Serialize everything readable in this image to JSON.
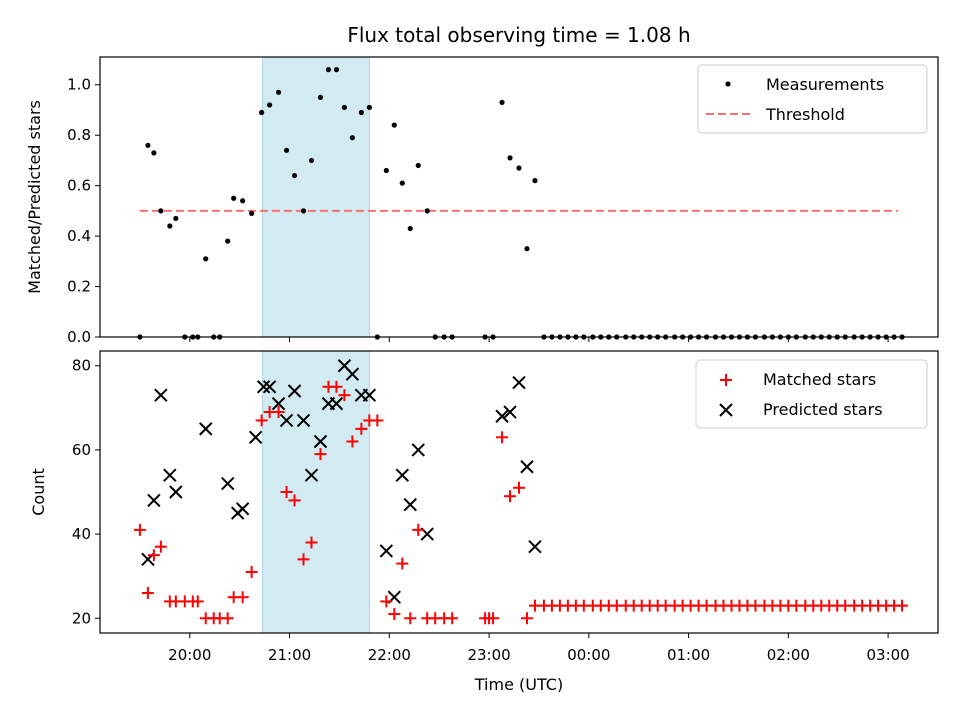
{
  "chart_data": {
    "type": "scatter",
    "title": "Flux total observing time = 1.08 h",
    "xlabel": "Time (UTC)",
    "x_unit": "hours since 00:00 UTC (negative = previous day)",
    "xlim": [
      -4.9,
      3.5
    ],
    "x_ticks": [
      {
        "value": -4,
        "label": "20:00"
      },
      {
        "value": -3,
        "label": "21:00"
      },
      {
        "value": -2,
        "label": "22:00"
      },
      {
        "value": -1,
        "label": "23:00"
      },
      {
        "value": 0,
        "label": "00:00"
      },
      {
        "value": 1,
        "label": "01:00"
      },
      {
        "value": 2,
        "label": "02:00"
      },
      {
        "value": 3,
        "label": "03:00"
      }
    ],
    "highlight_span": {
      "x0": -3.27,
      "x1": -2.2,
      "color": "#add8e6"
    },
    "top_panel": {
      "ylabel": "Matched/Predicted stars",
      "ylim": [
        0,
        1.11
      ],
      "y_ticks": [
        {
          "value": 0.0,
          "label": "0.0"
        },
        {
          "value": 0.2,
          "label": "0.2"
        },
        {
          "value": 0.4,
          "label": "0.4"
        },
        {
          "value": 0.6,
          "label": "0.6"
        },
        {
          "value": 0.8,
          "label": "0.8"
        },
        {
          "value": 1.0,
          "label": "1.0"
        }
      ],
      "threshold": {
        "value": 0.5,
        "x_range": [
          -4.5,
          3.1
        ],
        "color": "#ff7070"
      },
      "legend": [
        "Measurements",
        "Threshold"
      ],
      "measurements": [
        [
          -4.5,
          0
        ],
        [
          -4.42,
          0.76
        ],
        [
          -4.36,
          0.73
        ],
        [
          -4.29,
          0.5
        ],
        [
          -4.2,
          0.44
        ],
        [
          -4.14,
          0.47
        ],
        [
          -4.05,
          0
        ],
        [
          -3.97,
          0
        ],
        [
          -3.92,
          0
        ],
        [
          -3.84,
          0.31
        ],
        [
          -3.76,
          0
        ],
        [
          -3.7,
          0
        ],
        [
          -3.62,
          0.38
        ],
        [
          -3.56,
          0.55
        ],
        [
          -3.47,
          0.54
        ],
        [
          -3.38,
          0.49
        ],
        [
          -3.28,
          0.89
        ],
        [
          -3.2,
          0.92
        ],
        [
          -3.11,
          0.97
        ],
        [
          -3.03,
          0.74
        ],
        [
          -2.95,
          0.64
        ],
        [
          -2.86,
          0.5
        ],
        [
          -2.78,
          0.7
        ],
        [
          -2.69,
          0.95
        ],
        [
          -2.61,
          1.06
        ],
        [
          -2.53,
          1.06
        ],
        [
          -2.45,
          0.91
        ],
        [
          -2.37,
          0.79
        ],
        [
          -2.28,
          0.89
        ],
        [
          -2.2,
          0.91
        ],
        [
          -2.12,
          0
        ],
        [
          -2.03,
          0.66
        ],
        [
          -1.95,
          0.84
        ],
        [
          -1.87,
          0.61
        ],
        [
          -1.79,
          0.43
        ],
        [
          -1.71,
          0.68
        ],
        [
          -1.62,
          0.5
        ],
        [
          -1.54,
          0
        ],
        [
          -1.45,
          0
        ],
        [
          -1.37,
          0
        ],
        [
          -1.04,
          0
        ],
        [
          -0.96,
          0
        ],
        [
          -0.87,
          0.93
        ],
        [
          -0.79,
          0.71
        ],
        [
          -0.7,
          0.67
        ],
        [
          -0.62,
          0.35
        ],
        [
          -0.54,
          0.62
        ],
        [
          -0.45,
          0
        ],
        [
          -0.37,
          0
        ],
        [
          -0.29,
          0
        ],
        [
          -0.21,
          0
        ],
        [
          -0.13,
          0
        ],
        [
          -0.05,
          0
        ],
        [
          0.04,
          0
        ],
        [
          0.12,
          0
        ],
        [
          0.2,
          0
        ],
        [
          0.28,
          0
        ],
        [
          0.37,
          0
        ],
        [
          0.45,
          0
        ],
        [
          0.53,
          0
        ],
        [
          0.61,
          0
        ],
        [
          0.69,
          0
        ],
        [
          0.77,
          0
        ],
        [
          0.86,
          0
        ],
        [
          0.94,
          0
        ],
        [
          1.02,
          0
        ],
        [
          1.1,
          0
        ],
        [
          1.18,
          0
        ],
        [
          1.27,
          0
        ],
        [
          1.35,
          0
        ],
        [
          1.43,
          0
        ],
        [
          1.51,
          0
        ],
        [
          1.59,
          0
        ],
        [
          1.67,
          0
        ],
        [
          1.76,
          0
        ],
        [
          1.84,
          0
        ],
        [
          1.92,
          0
        ],
        [
          2.0,
          0
        ],
        [
          2.08,
          0
        ],
        [
          2.17,
          0
        ],
        [
          2.25,
          0
        ],
        [
          2.33,
          0
        ],
        [
          2.41,
          0
        ],
        [
          2.49,
          0
        ],
        [
          2.57,
          0
        ],
        [
          2.66,
          0
        ],
        [
          2.74,
          0
        ],
        [
          2.82,
          0
        ],
        [
          2.9,
          0
        ],
        [
          2.98,
          0
        ],
        [
          3.06,
          0
        ],
        [
          3.14,
          0
        ]
      ]
    },
    "bottom_panel": {
      "ylabel": "Count",
      "ylim": [
        16.5,
        83.5
      ],
      "y_ticks": [
        {
          "value": 20,
          "label": "20"
        },
        {
          "value": 40,
          "label": "40"
        },
        {
          "value": 60,
          "label": "60"
        },
        {
          "value": 80,
          "label": "80"
        }
      ],
      "legend": [
        "Matched stars",
        "Predicted stars"
      ],
      "matched_color": "#ff0000",
      "predicted_color": "#000000",
      "matched": [
        [
          -4.5,
          41
        ],
        [
          -4.42,
          26
        ],
        [
          -4.36,
          35
        ],
        [
          -4.29,
          37
        ],
        [
          -4.2,
          24
        ],
        [
          -4.14,
          24
        ],
        [
          -4.05,
          24
        ],
        [
          -3.97,
          24
        ],
        [
          -3.92,
          24
        ],
        [
          -3.84,
          20
        ],
        [
          -3.76,
          20
        ],
        [
          -3.7,
          20
        ],
        [
          -3.62,
          20
        ],
        [
          -3.56,
          25
        ],
        [
          -3.47,
          25
        ],
        [
          -3.38,
          31
        ],
        [
          -3.28,
          67
        ],
        [
          -3.2,
          69
        ],
        [
          -3.11,
          69
        ],
        [
          -3.03,
          50
        ],
        [
          -2.95,
          48
        ],
        [
          -2.86,
          34
        ],
        [
          -2.78,
          38
        ],
        [
          -2.69,
          59
        ],
        [
          -2.61,
          75
        ],
        [
          -2.53,
          75
        ],
        [
          -2.45,
          73
        ],
        [
          -2.37,
          62
        ],
        [
          -2.28,
          65
        ],
        [
          -2.2,
          67
        ],
        [
          -2.12,
          67
        ],
        [
          -2.03,
          24
        ],
        [
          -1.95,
          21
        ],
        [
          -1.87,
          33
        ],
        [
          -1.79,
          20
        ],
        [
          -1.71,
          41
        ],
        [
          -1.62,
          20
        ],
        [
          -1.54,
          20
        ],
        [
          -1.45,
          20
        ],
        [
          -1.37,
          20
        ],
        [
          -1.04,
          20
        ],
        [
          -0.96,
          20
        ],
        [
          -1.0,
          20
        ],
        [
          -0.87,
          63
        ],
        [
          -0.79,
          49
        ],
        [
          -0.7,
          51
        ],
        [
          -0.62,
          20
        ],
        [
          -0.54,
          23
        ],
        [
          -0.45,
          23
        ],
        [
          -0.37,
          23
        ],
        [
          -0.29,
          23
        ],
        [
          -0.21,
          23
        ],
        [
          -0.13,
          23
        ],
        [
          -0.05,
          23
        ],
        [
          0.04,
          23
        ],
        [
          0.12,
          23
        ],
        [
          0.2,
          23
        ],
        [
          0.28,
          23
        ],
        [
          0.37,
          23
        ],
        [
          0.45,
          23
        ],
        [
          0.53,
          23
        ],
        [
          0.61,
          23
        ],
        [
          0.69,
          23
        ],
        [
          0.77,
          23
        ],
        [
          0.86,
          23
        ],
        [
          0.94,
          23
        ],
        [
          1.02,
          23
        ],
        [
          1.1,
          23
        ],
        [
          1.18,
          23
        ],
        [
          1.27,
          23
        ],
        [
          1.35,
          23
        ],
        [
          1.43,
          23
        ],
        [
          1.51,
          23
        ],
        [
          1.59,
          23
        ],
        [
          1.67,
          23
        ],
        [
          1.76,
          23
        ],
        [
          1.84,
          23
        ],
        [
          1.92,
          23
        ],
        [
          2.0,
          23
        ],
        [
          2.08,
          23
        ],
        [
          2.17,
          23
        ],
        [
          2.25,
          23
        ],
        [
          2.33,
          23
        ],
        [
          2.41,
          23
        ],
        [
          2.49,
          23
        ],
        [
          2.57,
          23
        ],
        [
          2.66,
          23
        ],
        [
          2.74,
          23
        ],
        [
          2.82,
          23
        ],
        [
          2.9,
          23
        ],
        [
          2.98,
          23
        ],
        [
          3.06,
          23
        ],
        [
          3.14,
          23
        ]
      ],
      "predicted": [
        [
          -4.42,
          34
        ],
        [
          -4.36,
          48
        ],
        [
          -4.29,
          73
        ],
        [
          -4.2,
          54
        ],
        [
          -4.14,
          50
        ],
        [
          -3.84,
          65
        ],
        [
          -3.62,
          52
        ],
        [
          -3.52,
          45
        ],
        [
          -3.47,
          46
        ],
        [
          -3.34,
          63
        ],
        [
          -3.26,
          75
        ],
        [
          -3.2,
          75
        ],
        [
          -3.11,
          71
        ],
        [
          -3.03,
          67
        ],
        [
          -2.95,
          74
        ],
        [
          -2.86,
          67
        ],
        [
          -2.78,
          54
        ],
        [
          -2.69,
          62
        ],
        [
          -2.61,
          71
        ],
        [
          -2.53,
          71
        ],
        [
          -2.45,
          80
        ],
        [
          -2.37,
          78
        ],
        [
          -2.28,
          73
        ],
        [
          -2.2,
          73
        ],
        [
          -2.03,
          36
        ],
        [
          -1.95,
          25
        ],
        [
          -1.87,
          54
        ],
        [
          -1.79,
          47
        ],
        [
          -1.71,
          60
        ],
        [
          -1.62,
          40
        ],
        [
          -0.87,
          68
        ],
        [
          -0.79,
          69
        ],
        [
          -0.7,
          76
        ],
        [
          -0.62,
          56
        ],
        [
          -0.54,
          37
        ]
      ]
    }
  }
}
